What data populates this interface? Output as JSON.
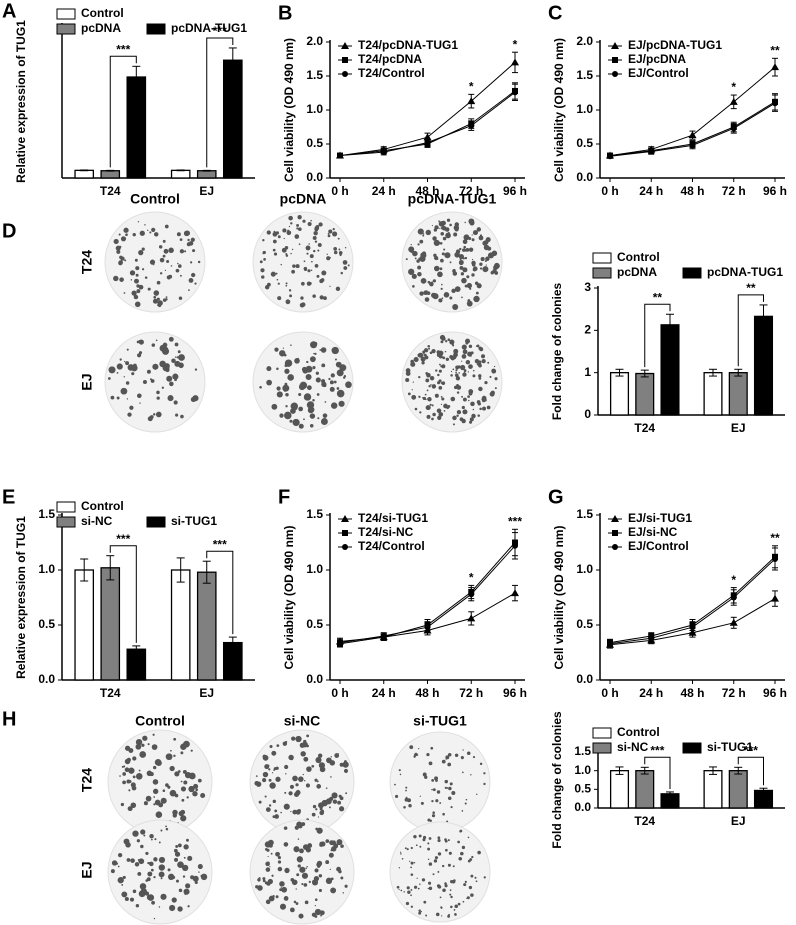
{
  "panel_letters": [
    "A",
    "B",
    "C",
    "D",
    "E",
    "F",
    "G",
    "H"
  ],
  "colony_panels": [
    {
      "columns": [
        "Control",
        "pcDNA",
        "pcDNA-TUG1"
      ],
      "rows": [
        "T24",
        "EJ"
      ]
    },
    {
      "columns": [
        "Control",
        "si-NC",
        "si-TUG1"
      ],
      "rows": [
        "T24",
        "EJ"
      ]
    }
  ],
  "chart_data": [
    {
      "type": "bar",
      "y_label": "Relative expression of TUG1",
      "categories": [
        "T24",
        "EJ"
      ],
      "ylim": [
        0,
        20
      ],
      "series": [
        {
          "name": "Control",
          "color": "#ffffff",
          "values": [
            1.0,
            1.0
          ],
          "errors": [
            0.05,
            0.05
          ]
        },
        {
          "name": "pcDNA",
          "color": "#808080",
          "values": [
            0.95,
            0.95
          ],
          "errors": [
            0.05,
            0.05
          ]
        },
        {
          "name": "pcDNA-TUG1",
          "color": "#000000",
          "values": [
            13.2,
            15.4
          ],
          "errors": [
            1.4,
            1.6
          ]
        }
      ],
      "annotations": [
        "***",
        "***"
      ]
    },
    {
      "type": "line",
      "y_label": "Cell viability (OD 490 nm)",
      "x": [
        "0 h",
        "24 h",
        "48 h",
        "72 h",
        "96 h"
      ],
      "ylim": [
        0,
        2
      ],
      "yticks": [
        {
          "value": 0,
          "label": "0.0"
        },
        {
          "value": 0.5,
          "label": "0.5"
        },
        {
          "value": 1,
          "label": "1.0"
        },
        {
          "value": 1.5,
          "label": "1.5"
        },
        {
          "value": 2,
          "label": "2.0"
        }
      ],
      "series": [
        {
          "name": "T24/pcDNA-TUG1",
          "color": "#000000",
          "marker": "triangle",
          "values": [
            0.33,
            0.42,
            0.6,
            1.13,
            1.7
          ],
          "errors": [
            0.03,
            0.04,
            0.06,
            0.1,
            0.15
          ]
        },
        {
          "name": "T24/pcDNA",
          "color": "#000000",
          "marker": "square",
          "values": [
            0.33,
            0.4,
            0.5,
            0.8,
            1.28
          ],
          "errors": [
            0.03,
            0.04,
            0.05,
            0.07,
            0.12
          ]
        },
        {
          "name": "T24/Control",
          "color": "#000000",
          "marker": "circle",
          "values": [
            0.33,
            0.38,
            0.52,
            0.77,
            1.26
          ],
          "errors": [
            0.03,
            0.04,
            0.05,
            0.07,
            0.12
          ]
        }
      ],
      "annotations": [
        null,
        null,
        null,
        "*",
        "*"
      ]
    },
    {
      "type": "line",
      "y_label": "Cell viability (OD 490 nm)",
      "x": [
        "0 h",
        "24 h",
        "48 h",
        "72 h",
        "96 h"
      ],
      "ylim": [
        0,
        2
      ],
      "yticks": [
        {
          "value": 0,
          "label": "0.0"
        },
        {
          "value": 0.5,
          "label": "0.5"
        },
        {
          "value": 1,
          "label": "1.0"
        },
        {
          "value": 1.5,
          "label": "1.5"
        },
        {
          "value": 2,
          "label": "2.0"
        }
      ],
      "series": [
        {
          "name": "EJ/pcDNA-TUG1",
          "color": "#000000",
          "marker": "triangle",
          "values": [
            0.33,
            0.42,
            0.63,
            1.12,
            1.63
          ],
          "errors": [
            0.03,
            0.04,
            0.06,
            0.1,
            0.13
          ]
        },
        {
          "name": "EJ/pcDNA",
          "color": "#000000",
          "marker": "square",
          "values": [
            0.33,
            0.4,
            0.5,
            0.75,
            1.12
          ],
          "errors": [
            0.03,
            0.04,
            0.05,
            0.07,
            0.12
          ]
        },
        {
          "name": "EJ/Control",
          "color": "#000000",
          "marker": "circle",
          "values": [
            0.32,
            0.39,
            0.48,
            0.73,
            1.1
          ],
          "errors": [
            0.03,
            0.04,
            0.05,
            0.07,
            0.12
          ]
        }
      ],
      "annotations": [
        null,
        null,
        null,
        "*",
        "**"
      ]
    },
    {
      "type": "bar",
      "y_label": "Fold change of colonies",
      "categories": [
        "T24",
        "EJ"
      ],
      "ylim": [
        0,
        3
      ],
      "yticks": [
        0,
        1,
        2,
        3
      ],
      "series": [
        {
          "name": "Control",
          "color": "#ffffff",
          "values": [
            1.0,
            1.0
          ],
          "errors": [
            0.08,
            0.08
          ]
        },
        {
          "name": "pcDNA",
          "color": "#808080",
          "values": [
            0.98,
            1.0
          ],
          "errors": [
            0.08,
            0.08
          ]
        },
        {
          "name": "pcDNA-TUG1",
          "color": "#000000",
          "values": [
            2.13,
            2.33
          ],
          "errors": [
            0.25,
            0.27
          ]
        }
      ],
      "annotations": [
        "**",
        "**"
      ]
    },
    {
      "type": "bar",
      "y_label": "Relative expression of TUG1",
      "categories": [
        "T24",
        "EJ"
      ],
      "ylim": [
        0,
        1.5
      ],
      "yticks": [
        {
          "value": 0,
          "label": "0.0"
        },
        {
          "value": 0.5,
          "label": "0.5"
        },
        {
          "value": 1,
          "label": "1.0"
        },
        {
          "value": 1.5,
          "label": "1.5"
        }
      ],
      "series": [
        {
          "name": "Control",
          "color": "#ffffff",
          "values": [
            1.0,
            1.0
          ],
          "errors": [
            0.1,
            0.11
          ]
        },
        {
          "name": "si-NC",
          "color": "#808080",
          "values": [
            1.02,
            0.98
          ],
          "errors": [
            0.11,
            0.1
          ]
        },
        {
          "name": "si-TUG1",
          "color": "#000000",
          "values": [
            0.28,
            0.34
          ],
          "errors": [
            0.03,
            0.05
          ]
        }
      ],
      "annotations": [
        "***",
        "***"
      ]
    },
    {
      "type": "line",
      "y_label": "Cell viability (OD 490 nm)",
      "x": [
        "0 h",
        "24 h",
        "48 h",
        "72 h",
        "96 h"
      ],
      "ylim": [
        0,
        1.5
      ],
      "yticks": [
        {
          "value": 0,
          "label": "0.0"
        },
        {
          "value": 0.5,
          "label": "0.5"
        },
        {
          "value": 1,
          "label": "1.0"
        },
        {
          "value": 1.5,
          "label": "1.5"
        }
      ],
      "series": [
        {
          "name": "T24/si-TUG1",
          "color": "#000000",
          "marker": "triangle",
          "values": [
            0.35,
            0.39,
            0.45,
            0.56,
            0.79
          ],
          "errors": [
            0.03,
            0.03,
            0.04,
            0.06,
            0.07
          ]
        },
        {
          "name": "T24/si-NC",
          "color": "#000000",
          "marker": "square",
          "values": [
            0.33,
            0.39,
            0.5,
            0.8,
            1.25
          ],
          "errors": [
            0.03,
            0.03,
            0.05,
            0.06,
            0.12
          ]
        },
        {
          "name": "T24/Control",
          "color": "#000000",
          "marker": "circle",
          "values": [
            0.34,
            0.4,
            0.48,
            0.78,
            1.22
          ],
          "errors": [
            0.03,
            0.03,
            0.05,
            0.06,
            0.12
          ]
        }
      ],
      "annotations": [
        null,
        null,
        null,
        "*",
        "***"
      ]
    },
    {
      "type": "line",
      "y_label": "Cell viability (OD 490 nm)",
      "x": [
        "0 h",
        "24 h",
        "48 h",
        "72 h",
        "96 h"
      ],
      "ylim": [
        0,
        1.5
      ],
      "yticks": [
        {
          "value": 0,
          "label": "0.0"
        },
        {
          "value": 0.5,
          "label": "0.5"
        },
        {
          "value": 1,
          "label": "1.0"
        },
        {
          "value": 1.5,
          "label": "1.5"
        }
      ],
      "series": [
        {
          "name": "EJ/si-TUG1",
          "color": "#000000",
          "marker": "triangle",
          "values": [
            0.32,
            0.36,
            0.43,
            0.52,
            0.74
          ],
          "errors": [
            0.03,
            0.03,
            0.04,
            0.05,
            0.07
          ]
        },
        {
          "name": "EJ/si-NC",
          "color": "#000000",
          "marker": "square",
          "values": [
            0.34,
            0.4,
            0.5,
            0.77,
            1.12
          ],
          "errors": [
            0.03,
            0.03,
            0.05,
            0.07,
            0.1
          ]
        },
        {
          "name": "EJ/Control",
          "color": "#000000",
          "marker": "circle",
          "values": [
            0.33,
            0.38,
            0.48,
            0.75,
            1.1
          ],
          "errors": [
            0.03,
            0.03,
            0.05,
            0.07,
            0.1
          ]
        }
      ],
      "annotations": [
        null,
        null,
        null,
        "*",
        "**"
      ]
    },
    {
      "type": "bar",
      "y_label": "Fold change of colonies",
      "categories": [
        "T24",
        "EJ"
      ],
      "ylim": [
        0,
        1.5
      ],
      "yticks": [
        {
          "value": 0,
          "label": "0.0"
        },
        {
          "value": 0.5,
          "label": "0.5"
        },
        {
          "value": 1,
          "label": "1.0"
        },
        {
          "value": 1.5,
          "label": "1.5"
        }
      ],
      "series": [
        {
          "name": "Control",
          "color": "#ffffff",
          "values": [
            1.0,
            1.0
          ],
          "errors": [
            0.1,
            0.1
          ]
        },
        {
          "name": "si-NC",
          "color": "#808080",
          "values": [
            1.0,
            1.0
          ],
          "errors": [
            0.09,
            0.09
          ]
        },
        {
          "name": "si-TUG1",
          "color": "#000000",
          "values": [
            0.38,
            0.47
          ],
          "errors": [
            0.05,
            0.06
          ]
        }
      ],
      "annotations": [
        "***",
        "***"
      ]
    }
  ]
}
